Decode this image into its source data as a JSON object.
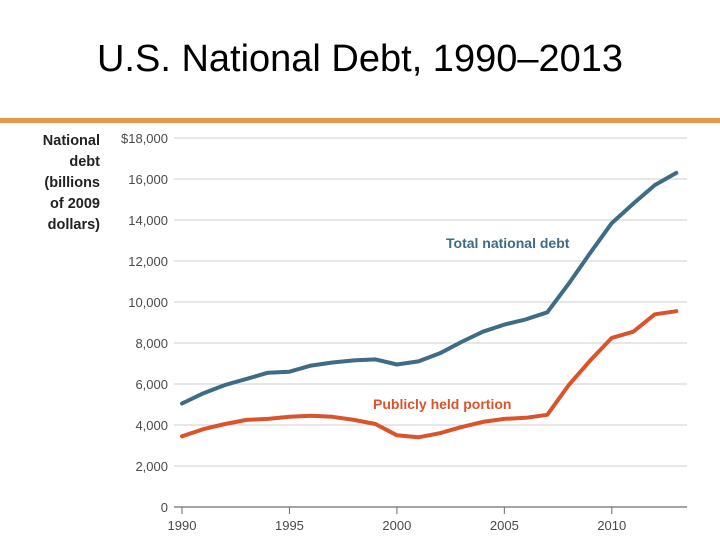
{
  "title": "U.S. National Debt, 1990–2013",
  "colors": {
    "rule": "#e8974a",
    "total": "#3e6b85",
    "public": "#d9542b",
    "grid": "#cfcfcf",
    "axis": "#6e6e6e"
  },
  "chart_data": {
    "type": "line",
    "ylabel_lines": [
      "National",
      "debt",
      "(billions",
      "of 2009",
      "dollars)"
    ],
    "xlabel": "",
    "xlim": [
      1990,
      2013
    ],
    "ylim": [
      0,
      18000
    ],
    "xticks": [
      1990,
      1995,
      2000,
      2005,
      2010
    ],
    "yticks": [
      0,
      2000,
      4000,
      6000,
      8000,
      10000,
      12000,
      14000,
      16000,
      18000
    ],
    "ytick_labels": [
      "0",
      "2,000",
      "4,000",
      "6,000",
      "8,000",
      "10,000",
      "12,000",
      "14,000",
      "16,000",
      "$18,000"
    ],
    "grid": true,
    "x": [
      1990,
      1991,
      1992,
      1993,
      1994,
      1995,
      1996,
      1997,
      1998,
      1999,
      2000,
      2001,
      2002,
      2003,
      2004,
      2005,
      2006,
      2007,
      2008,
      2009,
      2010,
      2011,
      2012,
      2013
    ],
    "series": [
      {
        "name": "Total national debt",
        "values": [
          5050,
          5550,
          5950,
          6250,
          6550,
          6600,
          6900,
          7050,
          7150,
          7200,
          6950,
          7100,
          7500,
          8050,
          8550,
          8900,
          9150,
          9500,
          10900,
          12400,
          13850,
          14800,
          15700,
          16300
        ]
      },
      {
        "name": "Publicly held portion",
        "values": [
          3450,
          3800,
          4050,
          4250,
          4300,
          4400,
          4450,
          4400,
          4250,
          4050,
          3500,
          3400,
          3600,
          3900,
          4150,
          4300,
          4350,
          4500,
          5950,
          7150,
          8250,
          8550,
          9400,
          9550
        ]
      }
    ]
  }
}
